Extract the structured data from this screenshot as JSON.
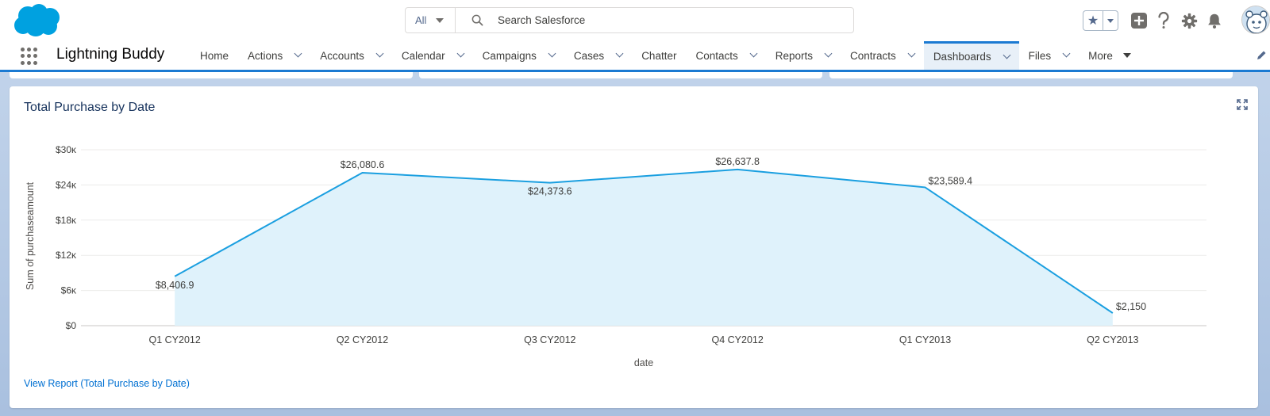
{
  "header": {
    "search_scope": "All",
    "search_placeholder": "Search Salesforce"
  },
  "icons": {
    "logo": "salesforce-cloud-logo",
    "search": "search-icon",
    "favorites": "star-icon",
    "add": "plus-icon",
    "help": "question-icon",
    "setup": "gear-icon",
    "notifications": "bell-icon",
    "expand": "expand-icon",
    "edit_nav": "pencil-icon"
  },
  "colors": {
    "brand": "#00a1e0",
    "nav_accent": "#1b7ad2",
    "series_line": "#1a9fe0",
    "series_fill": "#dff2fb",
    "link": "#0070d2"
  },
  "nav": {
    "app_name": "Lightning Buddy",
    "tabs": [
      {
        "label": "Home",
        "dropdown": false
      },
      {
        "label": "Actions",
        "dropdown": true
      },
      {
        "label": "Accounts",
        "dropdown": true
      },
      {
        "label": "Calendar",
        "dropdown": true
      },
      {
        "label": "Campaigns",
        "dropdown": true
      },
      {
        "label": "Cases",
        "dropdown": true
      },
      {
        "label": "Chatter",
        "dropdown": false
      },
      {
        "label": "Contacts",
        "dropdown": true
      },
      {
        "label": "Reports",
        "dropdown": true
      },
      {
        "label": "Contracts",
        "dropdown": true
      },
      {
        "label": "Dashboards",
        "dropdown": true,
        "active": true
      },
      {
        "label": "Files",
        "dropdown": true
      },
      {
        "label": "More",
        "dropdown": true
      }
    ]
  },
  "card": {
    "title": "Total Purchase by Date",
    "link": "View Report (Total Purchase by Date)"
  },
  "chart_data": {
    "type": "area",
    "title": "Total Purchase by Date",
    "xlabel": "date",
    "ylabel": "Sum of purchaseamount",
    "categories": [
      "Q1 CY2012",
      "Q2 CY2012",
      "Q3 CY2012",
      "Q4 CY2012",
      "Q1 CY2013",
      "Q2 CY2013"
    ],
    "values": [
      8406.9,
      26080.6,
      24373.6,
      26637.8,
      23589.4,
      2150
    ],
    "data_labels": [
      "$8,406.9",
      "$26,080.6",
      "$24,373.6",
      "$26,637.8",
      "$23,589.4",
      "$2,150"
    ],
    "y_ticks": [
      0,
      6000,
      12000,
      18000,
      24000,
      30000
    ],
    "y_tick_labels": [
      "$0",
      "$6ᴋ",
      "$12ᴋ",
      "$18ᴋ",
      "$24ᴋ",
      "$30ᴋ"
    ],
    "ylim": [
      0,
      30000
    ],
    "grid": true,
    "legend": "none"
  }
}
